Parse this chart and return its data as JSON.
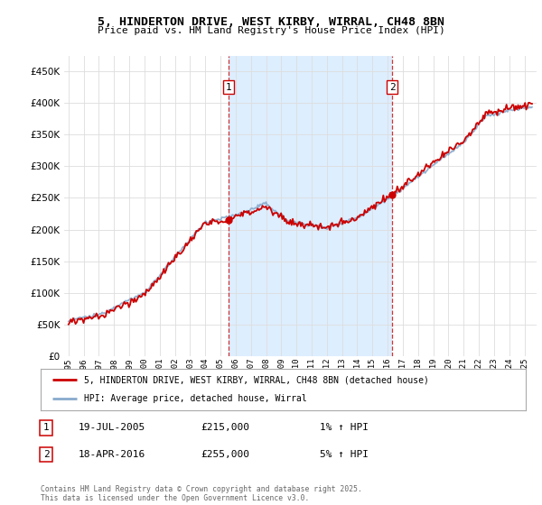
{
  "title": "5, HINDERTON DRIVE, WEST KIRBY, WIRRAL, CH48 8BN",
  "subtitle": "Price paid vs. HM Land Registry's House Price Index (HPI)",
  "ylim": [
    0,
    475000
  ],
  "yticks": [
    0,
    50000,
    100000,
    150000,
    200000,
    250000,
    300000,
    350000,
    400000,
    450000
  ],
  "ytick_labels": [
    "£0",
    "£50K",
    "£100K",
    "£150K",
    "£200K",
    "£250K",
    "£300K",
    "£350K",
    "£400K",
    "£450K"
  ],
  "plot_bg": "#ffffff",
  "shade_color": "#ddeeff",
  "grid_color": "#dddddd",
  "sale1_date": 2005.54,
  "sale1_price": 215000,
  "sale1_label": "1",
  "sale2_date": 2016.29,
  "sale2_price": 255000,
  "sale2_label": "2",
  "legend_line1": "5, HINDERTON DRIVE, WEST KIRBY, WIRRAL, CH48 8BN (detached house)",
  "legend_line2": "HPI: Average price, detached house, Wirral",
  "note1_label": "1",
  "note1_date": "19-JUL-2005",
  "note1_price": "£215,000",
  "note1_hpi": "1% ↑ HPI",
  "note2_label": "2",
  "note2_date": "18-APR-2016",
  "note2_price": "£255,000",
  "note2_hpi": "5% ↑ HPI",
  "footer": "Contains HM Land Registry data © Crown copyright and database right 2025.\nThis data is licensed under the Open Government Licence v3.0.",
  "hpi_color": "#88aacc",
  "price_color": "#cc0000",
  "xlim_left": 1994.7,
  "xlim_right": 2025.8
}
